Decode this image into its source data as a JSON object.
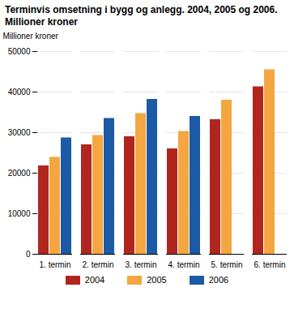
{
  "chart_data": {
    "type": "bar",
    "title": "Terminvis omsetning i bygg og anlegg. 2004, 2005 og 2006. Millioner kroner",
    "y_label": "Millioner kroner",
    "categories": [
      "1. termin",
      "2. termin",
      "3. termin",
      "4. termin",
      "5. termin",
      "6. termin"
    ],
    "series": [
      {
        "name": "2004",
        "color": "#b0261e",
        "values": [
          21800,
          27000,
          29000,
          26000,
          33200,
          41300
        ]
      },
      {
        "name": "2005",
        "color": "#f4a641",
        "values": [
          23900,
          29300,
          34700,
          30300,
          38000,
          45500
        ]
      },
      {
        "name": "2006",
        "color": "#1c5aa6",
        "values": [
          28700,
          33500,
          38200,
          34000,
          null,
          null
        ]
      }
    ],
    "ylim": [
      0,
      50000
    ],
    "yticks": [
      0,
      10000,
      20000,
      30000,
      40000,
      50000
    ],
    "grid": true,
    "legend": "bottom"
  }
}
